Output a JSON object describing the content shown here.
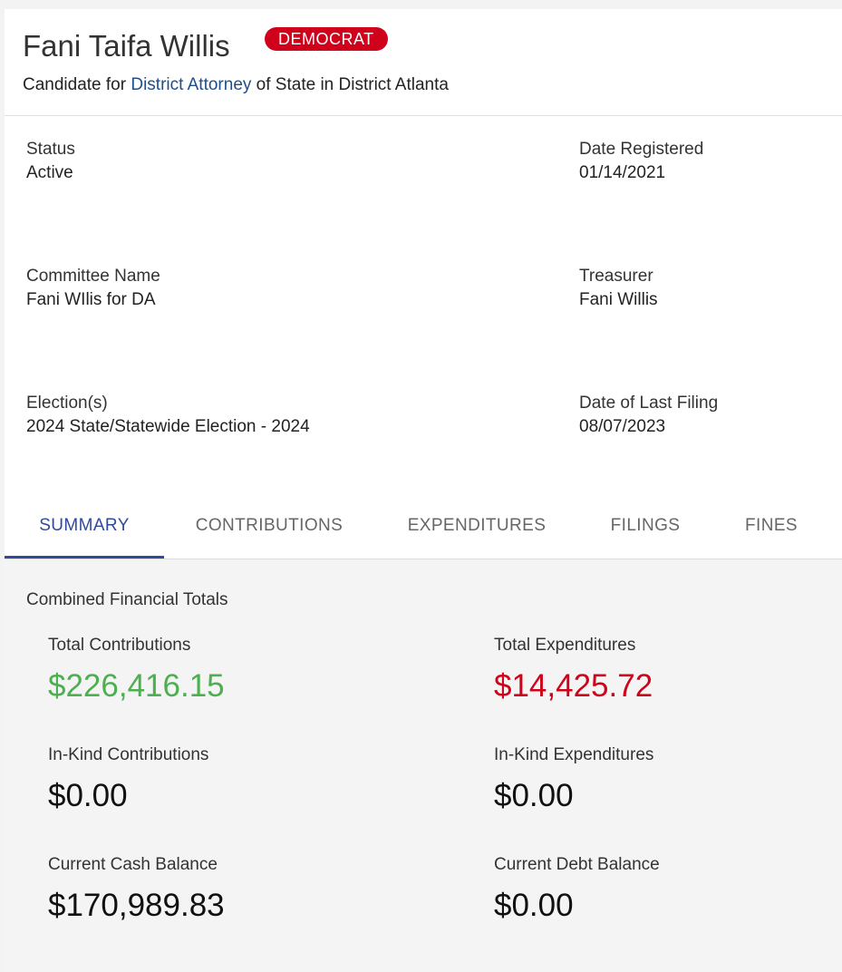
{
  "candidate": {
    "name": "Fani Taifa Willis",
    "party": "DEMOCRAT",
    "subtitle_prefix": "Candidate for ",
    "office_link": "District Attorney",
    "subtitle_suffix": " of State in District Atlanta"
  },
  "details": {
    "status": {
      "label": "Status",
      "value": "Active"
    },
    "date_registered": {
      "label": "Date Registered",
      "value": "01/14/2021"
    },
    "committee_name": {
      "label": "Committee Name",
      "value": "Fani WIlis for DA"
    },
    "treasurer": {
      "label": "Treasurer",
      "value": "Fani Willis"
    },
    "elections": {
      "label": "Election(s)",
      "value": "2024 State/Statewide Election - 2024"
    },
    "date_last_filing": {
      "label": "Date of Last Filing",
      "value": "08/07/2023"
    }
  },
  "tabs": [
    {
      "label": "SUMMARY",
      "active": true
    },
    {
      "label": "CONTRIBUTIONS",
      "active": false
    },
    {
      "label": "EXPENDITURES",
      "active": false
    },
    {
      "label": "FILINGS",
      "active": false
    },
    {
      "label": "FINES",
      "active": false
    }
  ],
  "summary": {
    "title": "Combined Financial Totals",
    "total_contributions": {
      "label": "Total Contributions",
      "value": "$226,416.15"
    },
    "total_expenditures": {
      "label": "Total Expenditures",
      "value": "$14,425.72"
    },
    "inkind_contributions": {
      "label": "In-Kind Contributions",
      "value": "$0.00"
    },
    "inkind_expenditures": {
      "label": "In-Kind Expenditures",
      "value": "$0.00"
    },
    "cash_balance": {
      "label": "Current Cash Balance",
      "value": "$170,989.83"
    },
    "debt_balance": {
      "label": "Current Debt Balance",
      "value": "$0.00"
    }
  },
  "colors": {
    "party_red": "#d0021b",
    "link_blue": "#1f4e8c",
    "tab_active": "#2f4a9a",
    "positive_green": "#4caf50",
    "negative_red": "#d0021b"
  }
}
